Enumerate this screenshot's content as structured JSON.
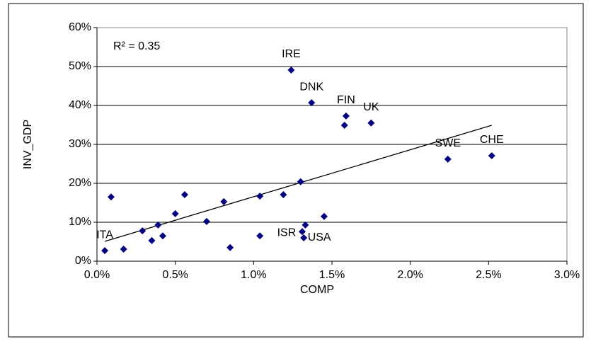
{
  "chart_data": {
    "type": "scatter",
    "xlabel": "COMP",
    "ylabel": "INV_GDP",
    "annotation": "R² = 0.35",
    "xlim": [
      0,
      3
    ],
    "ylim": [
      0,
      60
    ],
    "xticks": [
      {
        "value": 0,
        "label": "0.0%"
      },
      {
        "value": 0.5,
        "label": "0.5%"
      },
      {
        "value": 1,
        "label": "1.0%"
      },
      {
        "value": 1.5,
        "label": "1.5%"
      },
      {
        "value": 2,
        "label": "2.0%"
      },
      {
        "value": 2.5,
        "label": "2.5%"
      },
      {
        "value": 3,
        "label": "3.0%"
      }
    ],
    "yticks": [
      {
        "value": 0,
        "label": "0%"
      },
      {
        "value": 10,
        "label": "10%"
      },
      {
        "value": 20,
        "label": "20%"
      },
      {
        "value": 30,
        "label": "30%"
      },
      {
        "value": 40,
        "label": "40%"
      },
      {
        "value": 50,
        "label": "50%"
      },
      {
        "value": 60,
        "label": "60%"
      }
    ],
    "grid": true,
    "series": [
      {
        "color": "#000080",
        "x": [
          0.05,
          0.09,
          0.17,
          0.29,
          0.35,
          0.39,
          0.42,
          0.5,
          0.56,
          0.7,
          0.81,
          0.85,
          1.04,
          1.04,
          1.19,
          1.24,
          1.37,
          1.3,
          1.31,
          1.33,
          1.32,
          1.45,
          1.59,
          1.58,
          1.75,
          2.24,
          2.52
        ],
        "values": [
          2.7,
          16.5,
          3.1,
          7.8,
          5.3,
          9.3,
          6.5,
          12.2,
          17.1,
          10.2,
          15.3,
          3.5,
          6.5,
          16.7,
          17.1,
          49.1,
          40.7,
          20.4,
          7.6,
          9.3,
          6.0,
          11.5,
          37.3,
          34.9,
          35.5,
          26.2,
          27.1
        ],
        "labels": [
          "ITA",
          null,
          null,
          null,
          null,
          null,
          null,
          null,
          null,
          null,
          null,
          null,
          null,
          null,
          null,
          "IRE",
          "DNK",
          null,
          "ISR",
          null,
          "USA",
          null,
          "FIN",
          null,
          "UK",
          "SWE",
          "CHE"
        ]
      }
    ],
    "trendline": {
      "color": "#000000",
      "x": [
        0.05,
        2.52
      ],
      "values": [
        5.1,
        34.9
      ]
    }
  }
}
